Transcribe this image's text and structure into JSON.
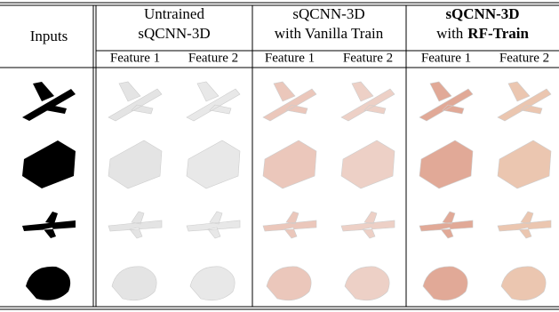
{
  "header": {
    "inputs": "Inputs",
    "groups": [
      {
        "lines": [
          [
            {
              "text": "Untrained",
              "bold": false
            }
          ],
          [
            {
              "text": "sQCNN-3D",
              "bold": false
            }
          ]
        ],
        "features": [
          "Feature 1",
          "Feature 2"
        ]
      },
      {
        "lines": [
          [
            {
              "text": "sQCNN-3D",
              "bold": false
            }
          ],
          [
            {
              "text": "with Vanilla Train",
              "bold": false
            }
          ]
        ],
        "features": [
          "Feature 1",
          "Feature 2"
        ]
      },
      {
        "lines": [
          [
            {
              "text": "sQCNN-3D",
              "bold": true
            }
          ],
          [
            {
              "text": "with",
              "bold": false
            },
            {
              "text": "RF-Train",
              "bold": true
            }
          ]
        ],
        "features": [
          "Feature 1",
          "Feature 2"
        ]
      }
    ]
  }
}
